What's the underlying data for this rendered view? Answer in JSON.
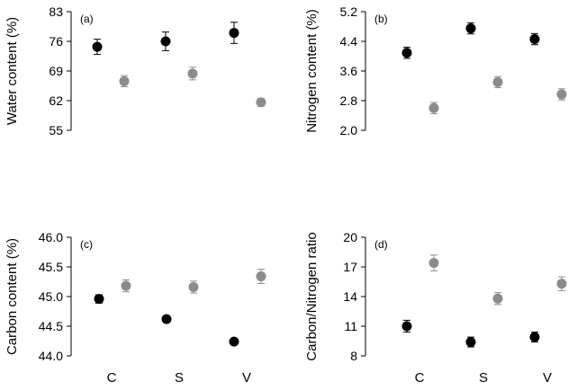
{
  "colors": {
    "series_a": "#000000",
    "series_b": "#8c8c8c"
  },
  "chart_data": [
    {
      "type": "scatter",
      "panel": "(a)",
      "ylabel": "Water content (%)",
      "ylim": [
        55,
        83
      ],
      "yticks": [
        "83",
        "76",
        "69",
        "62",
        "55"
      ],
      "categories": [
        "C",
        "S",
        "V"
      ],
      "series": [
        {
          "name": "black",
          "values": [
            74.7,
            76.0,
            78.0
          ],
          "err": [
            1.8,
            2.2,
            2.5
          ]
        },
        {
          "name": "grey",
          "values": [
            66.6,
            68.4,
            61.6
          ],
          "err": [
            1.3,
            1.5,
            0.9
          ]
        }
      ]
    },
    {
      "type": "scatter",
      "panel": "(b)",
      "ylabel": "Nitrogen content (%)",
      "ylim": [
        2.0,
        5.2
      ],
      "yticks": [
        "5.2",
        "4.4",
        "3.6",
        "2.8",
        "2.0"
      ],
      "categories": [
        "C",
        "S",
        "V"
      ],
      "series": [
        {
          "name": "black",
          "values": [
            4.09,
            4.75,
            4.46
          ],
          "err": [
            0.15,
            0.15,
            0.15
          ]
        },
        {
          "name": "grey",
          "values": [
            2.6,
            3.3,
            2.97
          ],
          "err": [
            0.15,
            0.15,
            0.15
          ]
        }
      ]
    },
    {
      "type": "scatter",
      "panel": "(c)",
      "ylabel": "Carbon content (%)",
      "ylim": [
        44.0,
        46.0
      ],
      "yticks": [
        "46.0",
        "45.5",
        "45.0",
        "44.5",
        "44.0"
      ],
      "categories": [
        "C",
        "S",
        "V"
      ],
      "series": [
        {
          "name": "black",
          "values": [
            44.96,
            44.62,
            44.24
          ],
          "err": [
            0.07,
            0.03,
            0.03
          ]
        },
        {
          "name": "grey",
          "values": [
            45.18,
            45.16,
            45.34
          ],
          "err": [
            0.1,
            0.1,
            0.12
          ]
        }
      ]
    },
    {
      "type": "scatter",
      "panel": "(d)",
      "ylabel": "Carbon/Nitrogen ratio",
      "ylim": [
        8,
        20
      ],
      "yticks": [
        "20",
        "17",
        "14",
        "11",
        "8"
      ],
      "categories": [
        "C",
        "S",
        "V"
      ],
      "series": [
        {
          "name": "black",
          "values": [
            11.0,
            9.4,
            9.9
          ],
          "err": [
            0.6,
            0.5,
            0.5
          ]
        },
        {
          "name": "grey",
          "values": [
            17.4,
            13.8,
            15.3
          ],
          "err": [
            0.8,
            0.6,
            0.7
          ]
        }
      ]
    }
  ]
}
